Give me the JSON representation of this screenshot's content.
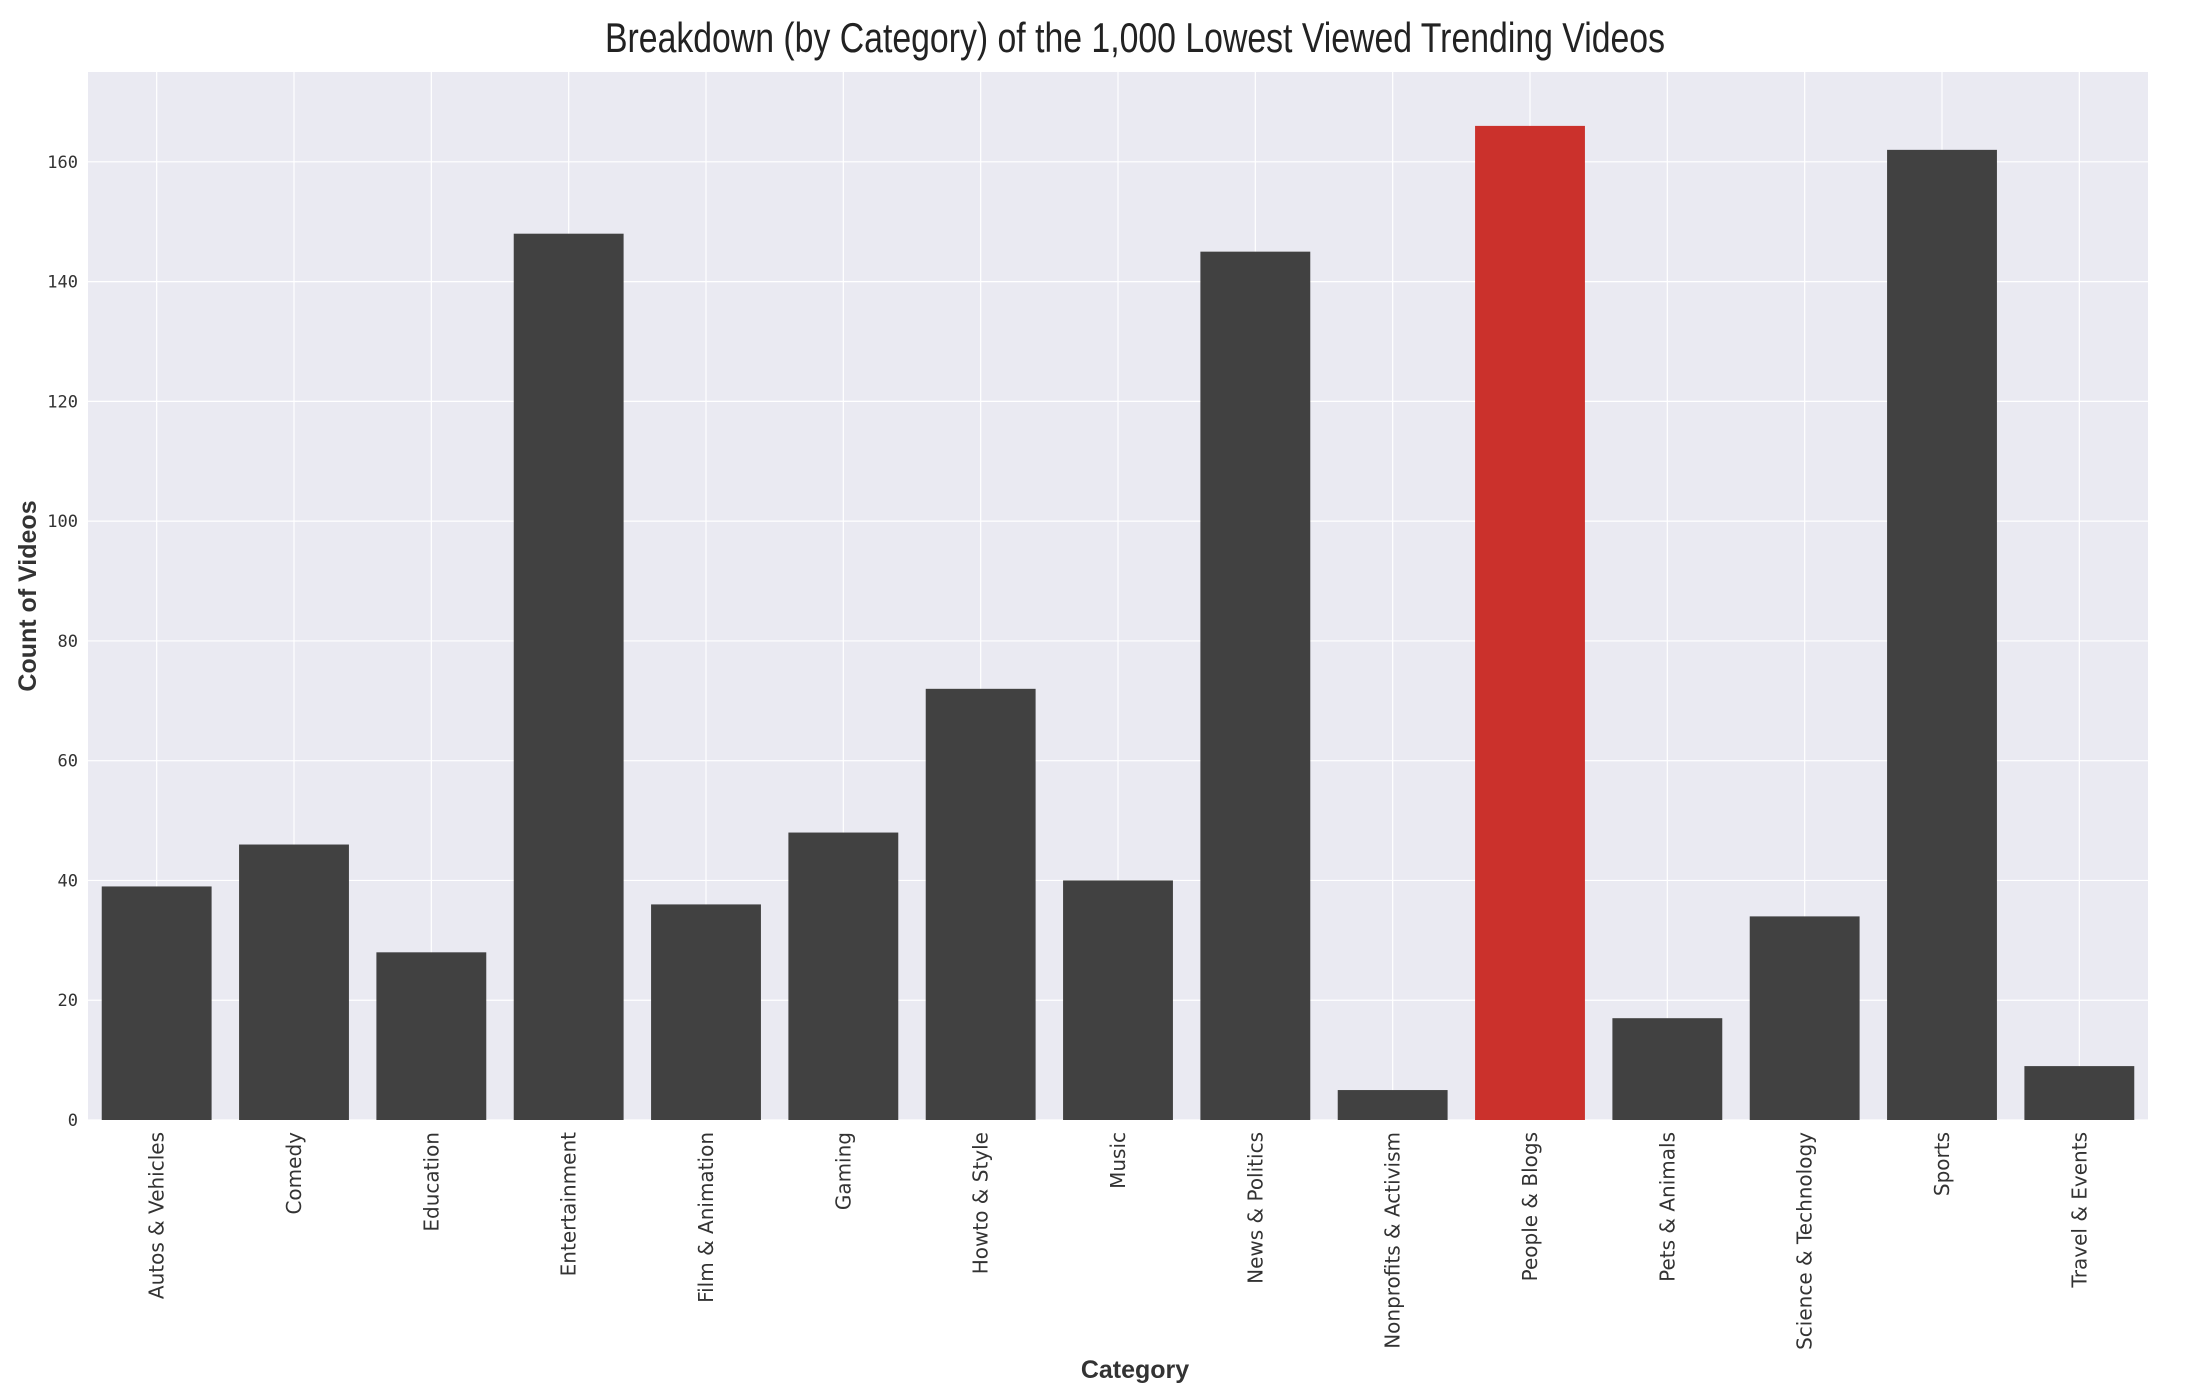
{
  "chart_data": {
    "type": "bar",
    "title": "Breakdown (by Category) of the 1,000 Lowest Viewed Trending Videos",
    "xlabel": "Category",
    "ylabel": "Count of Videos",
    "categories": [
      "Autos & Vehicles",
      "Comedy",
      "Education",
      "Entertainment",
      "Film & Animation",
      "Gaming",
      "Howto & Style",
      "Music",
      "News & Politics",
      "Nonprofits & Activism",
      "People & Blogs",
      "Pets & Animals",
      "Science & Technology",
      "Sports",
      "Travel & Events"
    ],
    "values": [
      39,
      46,
      28,
      148,
      36,
      48,
      72,
      40,
      145,
      5,
      166,
      17,
      34,
      162,
      9
    ],
    "highlight_category": "People & Blogs",
    "ylim": [
      0,
      175
    ],
    "yticks": [
      0,
      20,
      40,
      60,
      80,
      100,
      120,
      140,
      160
    ],
    "grid": true,
    "colors": {
      "bar": "#414141",
      "highlight": "#cb312c",
      "plot_background": "#eaeaf2",
      "grid": "#ffffff"
    }
  }
}
